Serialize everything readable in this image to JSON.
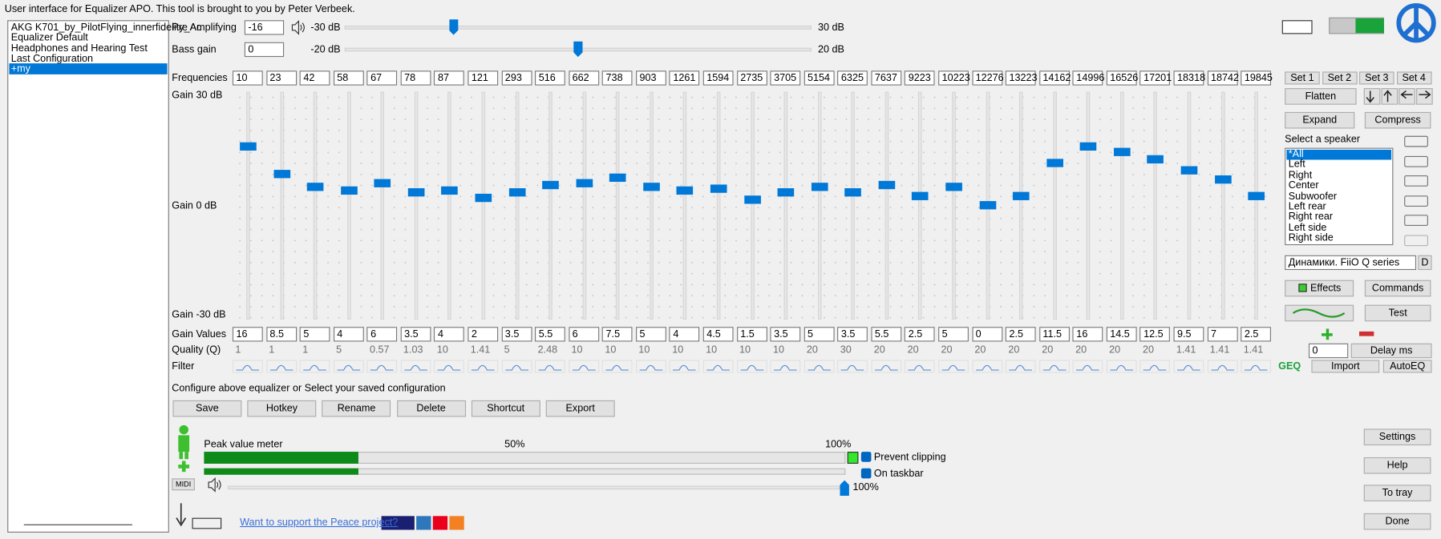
{
  "header": "User interface for Equalizer APO. This tool is brought to you by Peter Verbeek.",
  "configurations": {
    "items": [
      "AKG K701_by_PilotFlying_innerfidelity_Ac",
      "Equalizer Default",
      "Headphones and Hearing Test",
      "Last Configuration",
      "+my"
    ],
    "selected": 4
  },
  "pre_amp": {
    "label": "Pre Amplifying",
    "value": -16,
    "range": [
      {
        "value": -30,
        "label": "-30 dB"
      },
      {
        "value": 30,
        "label": "30 dB"
      }
    ]
  },
  "bass_gain": {
    "label": "Bass gain",
    "value": 0,
    "range": [
      {
        "value": -20,
        "label": "-20 dB"
      },
      {
        "value": 20,
        "label": "20 dB"
      }
    ]
  },
  "equalizer": {
    "frequencies_label": "Frequencies",
    "frequencies": [
      10,
      23,
      42,
      58,
      67,
      78,
      87,
      121,
      293,
      516,
      662,
      738,
      903,
      1261,
      1594,
      2735,
      3705,
      5154,
      6325,
      7637,
      9223,
      10223,
      12276,
      13223,
      14162,
      14996,
      16526,
      17201,
      18318,
      18742,
      19845
    ],
    "gain_scale": [
      {
        "value": 30,
        "label": "Gain 30 dB"
      },
      {
        "value": 0,
        "label": "Gain 0 dB"
      },
      {
        "value": -30,
        "label": "Gain -30 dB"
      }
    ],
    "gain_values_label": "Gain Values",
    "gains": [
      16,
      8.5,
      5,
      4,
      6,
      3.5,
      4,
      2,
      3.5,
      5.5,
      6,
      7.5,
      5,
      4,
      4.5,
      1.5,
      3.5,
      5,
      3.5,
      5.5,
      2.5,
      5,
      0,
      2.5,
      11.5,
      16,
      14.5,
      12.5,
      9.5,
      7,
      2.5
    ],
    "quality_label": "Quality (Q)",
    "quality": [
      1,
      1,
      1,
      5,
      0.57,
      1.03,
      10,
      1.41,
      5,
      2.48,
      10,
      10,
      10,
      10,
      10,
      10,
      10,
      20,
      30,
      20,
      20,
      20,
      20,
      20,
      20,
      20,
      20,
      20,
      1.41,
      1.41,
      1.41
    ],
    "filter_label": "Filter"
  },
  "sets": [
    "Set 1",
    "Set 2",
    "Set 3",
    "Set 4"
  ],
  "buttons": {
    "flatten": "Flatten",
    "expand": "Expand",
    "compress": "Compress",
    "effects": "Effects",
    "commands": "Commands",
    "test": "Test",
    "delay": "Delay ms",
    "geq": "GEQ",
    "import": "Import",
    "autoeq": "AutoEQ"
  },
  "speaker": {
    "label": "Select a speaker",
    "items": [
      "*All",
      "Left",
      "Right",
      "Center",
      "Subwoofer",
      "Left rear",
      "Right rear",
      "Left side",
      "Right side"
    ],
    "selected": 0,
    "device": "Динамики. FiiO Q series",
    "device_button": "D"
  },
  "delay_value": 0,
  "configure_text": "Configure above equalizer or Select your saved configuration",
  "config_buttons": [
    "Save",
    "Hotkey",
    "Rename",
    "Delete",
    "Shortcut",
    "Export"
  ],
  "meter": {
    "label": "Peak value meter",
    "xlim": [
      0,
      100
    ],
    "ticks": [
      {
        "value": 50,
        "label": "50%"
      },
      {
        "value": 100,
        "label": "100%"
      }
    ],
    "values": [
      24,
      24
    ],
    "midi": "MIDI"
  },
  "options": [
    "Prevent clipping",
    "On taskbar"
  ],
  "volume": {
    "value": 100,
    "label": "100%"
  },
  "support_link": "Want to support the Peace project?",
  "side_buttons": [
    "Settings",
    "Help",
    "To tray",
    "Done"
  ]
}
